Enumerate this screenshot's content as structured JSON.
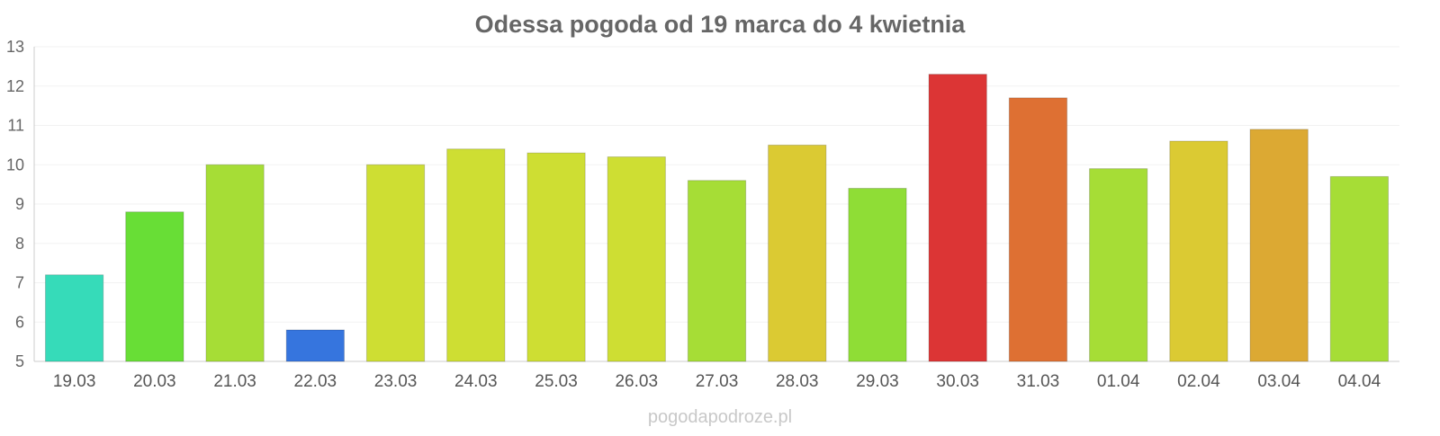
{
  "chart_data": {
    "type": "bar",
    "title": "Odessa pogoda od 19 marca do 4 kwietnia",
    "xlabel": "",
    "ylabel": "",
    "ylim": [
      5,
      13
    ],
    "yticks": [
      5,
      6,
      7,
      8,
      9,
      10,
      11,
      12,
      13
    ],
    "grid": true,
    "categories": [
      "19.03",
      "20.03",
      "21.03",
      "22.03",
      "23.03",
      "24.03",
      "25.03",
      "26.03",
      "27.03",
      "28.03",
      "29.03",
      "30.03",
      "31.03",
      "01.04",
      "02.04",
      "03.04",
      "04.04"
    ],
    "values": [
      7.2,
      8.8,
      10.0,
      5.8,
      10.0,
      10.4,
      10.3,
      10.2,
      9.6,
      10.5,
      9.4,
      12.3,
      11.7,
      9.9,
      10.6,
      10.9,
      9.7
    ],
    "colors": [
      "#36dbb9",
      "#68de36",
      "#a6dd36",
      "#3675de",
      "#cede33",
      "#cede33",
      "#cede33",
      "#cede33",
      "#a6dd36",
      "#dbca33",
      "#8fdd36",
      "#dc3535",
      "#de7033",
      "#a6dd36",
      "#dbca33",
      "#dca933",
      "#a6dd36"
    ]
  },
  "footer": {
    "source": "pogodapodroze.pl"
  }
}
